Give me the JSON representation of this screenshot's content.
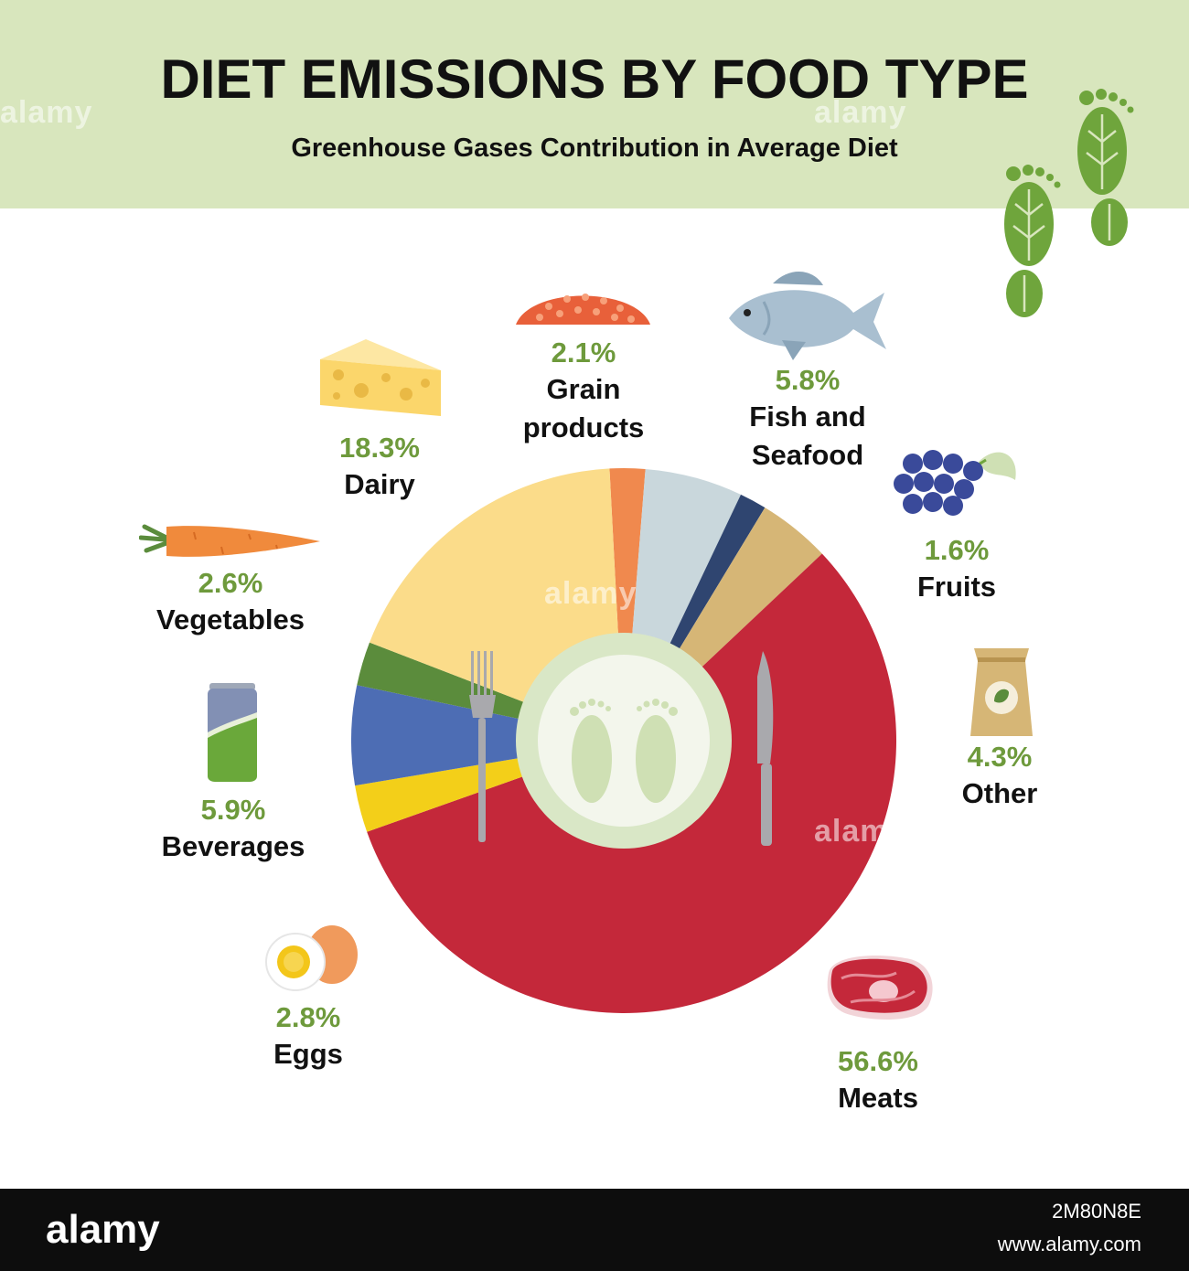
{
  "header": {
    "title": "DIET EMISSIONS BY FOOD TYPE",
    "subtitle": "Greenhouse Gases Contribution in Average Diet"
  },
  "chart_data": {
    "type": "pie",
    "title": "DIET EMISSIONS BY FOOD TYPE",
    "subtitle": "Greenhouse Gases Contribution in Average Diet",
    "unit": "%",
    "start_angle_deg": -3,
    "slices": [
      {
        "name": "Grain products",
        "value": 2.1,
        "label": "2.1%",
        "color": "#f0894e"
      },
      {
        "name": "Fish and Seafood",
        "value": 5.8,
        "label": "5.8%",
        "color": "#c9d7dc"
      },
      {
        "name": "Fruits",
        "value": 1.6,
        "label": "1.6%",
        "color": "#2f4570"
      },
      {
        "name": "Other",
        "value": 4.3,
        "label": "4.3%",
        "color": "#d6b676"
      },
      {
        "name": "Meats",
        "value": 56.6,
        "label": "56.6%",
        "color": "#c4283a"
      },
      {
        "name": "Eggs",
        "value": 2.8,
        "label": "2.8%",
        "color": "#f3cf19"
      },
      {
        "name": "Beverages",
        "value": 5.9,
        "label": "5.9%",
        "color": "#4d6db4"
      },
      {
        "name": "Vegetables",
        "value": 2.6,
        "label": "2.6%",
        "color": "#5b8c3c"
      },
      {
        "name": "Dairy",
        "value": 18.3,
        "label": "18.3%",
        "color": "#fbdc8a"
      }
    ]
  },
  "labels": {
    "grain": {
      "pct": "2.1%",
      "name1": "Grain",
      "name2": "products"
    },
    "fish": {
      "pct": "5.8%",
      "name1": "Fish and",
      "name2": "Seafood"
    },
    "dairy": {
      "pct": "18.3%",
      "name1": "Dairy"
    },
    "fruits": {
      "pct": "1.6%",
      "name1": "Fruits"
    },
    "vegetables": {
      "pct": "2.6%",
      "name1": "Vegetables"
    },
    "other": {
      "pct": "4.3%",
      "name1": "Other"
    },
    "beverages": {
      "pct": "5.9%",
      "name1": "Beverages"
    },
    "eggs": {
      "pct": "2.8%",
      "name1": "Eggs"
    },
    "meats": {
      "pct": "56.6%",
      "name1": "Meats"
    }
  },
  "watermark": "alamy",
  "footer": {
    "brand": "alamy",
    "image_code": "2M80N8E",
    "url": "www.alamy.com"
  },
  "colors": {
    "header_bg": "#d8e6bd",
    "percent_green": "#6e9a3c",
    "footprint_green": "#6fa53c"
  }
}
